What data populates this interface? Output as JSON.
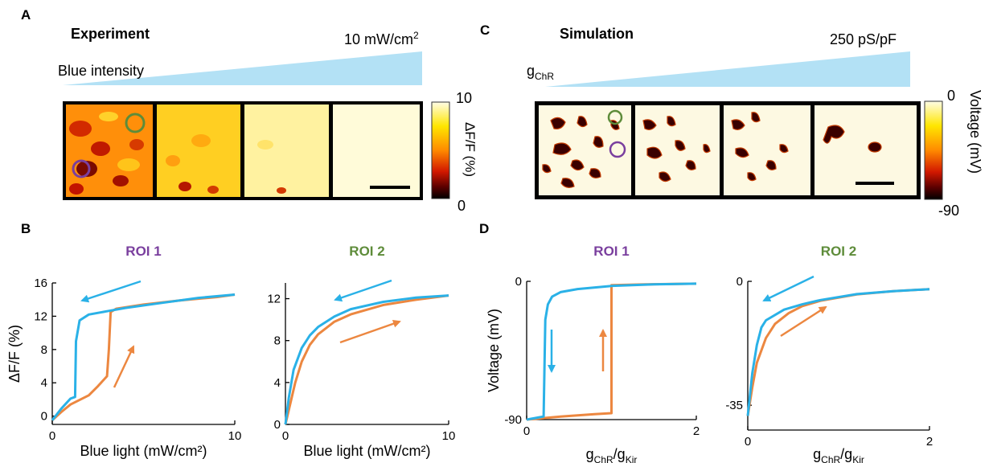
{
  "panels": {
    "A": {
      "letter": "A",
      "title": "Experiment",
      "intensity_label": "Blue intensity",
      "max_label": "10 mW/cm",
      "max_sup": "2",
      "colorbar": {
        "top": "10",
        "bottom": "0",
        "label": "ΔF/F (%)",
        "colors": [
          "#fffde6",
          "#ffe600",
          "#ff8a00",
          "#d21800",
          "#5a0000",
          "#000000"
        ]
      }
    },
    "C": {
      "letter": "C",
      "title": "Simulation",
      "g_label": "g",
      "g_sub": "ChR",
      "max_label": "250 pS/pF",
      "colorbar": {
        "top": "0",
        "bottom": "-90",
        "label": "Voltage (mV)"
      }
    },
    "B": {
      "letter": "B"
    },
    "D": {
      "letter": "D"
    }
  },
  "colors": {
    "ramp": "#b3e1f5",
    "blue": "#2ab1e7",
    "orange": "#ec8740",
    "roi1": "#7a3f9e",
    "roi2": "#5e8c3a"
  },
  "chart_data": [
    {
      "type": "line",
      "title": "ROI 1",
      "xlabel": "Blue light (mW/cm²)",
      "ylabel": "ΔF/F (%)",
      "xlim": [
        0,
        10
      ],
      "ylim": [
        -1,
        16
      ],
      "xticks": [
        "0",
        "10"
      ],
      "yticks": [
        "0",
        "4",
        "8",
        "12",
        "16"
      ],
      "series": [
        {
          "values": [
            [
              0,
              -0.5
            ],
            [
              0.5,
              0.5
            ],
            [
              1,
              1.4
            ],
            [
              2,
              2.5
            ],
            [
              2.5,
              3.6
            ],
            [
              3,
              4.8
            ],
            [
              3.1,
              8
            ],
            [
              3.2,
              12.5
            ],
            [
              3.5,
              12.9
            ],
            [
              5,
              13.4
            ],
            [
              7,
              13.9
            ],
            [
              9,
              14.3
            ],
            [
              10,
              14.6
            ]
          ]
        },
        {
          "values": [
            [
              10,
              14.6
            ],
            [
              8,
              14.2
            ],
            [
              6,
              13.6
            ],
            [
              4,
              13
            ],
            [
              3,
              12.6
            ],
            [
              2,
              12.2
            ],
            [
              1.5,
              11.5
            ],
            [
              1.3,
              9
            ],
            [
              1.25,
              2.3
            ],
            [
              1,
              2.1
            ],
            [
              0.5,
              0.9
            ],
            [
              0,
              -0.5
            ]
          ]
        }
      ]
    },
    {
      "type": "line",
      "title": "ROI 2",
      "xlabel": "Blue light (mW/cm²)",
      "ylabel": "",
      "xlim": [
        0,
        10
      ],
      "ylim": [
        0,
        13.5
      ],
      "xticks": [
        "0",
        "10"
      ],
      "yticks": [
        "0",
        "4",
        "8",
        "12"
      ],
      "series": [
        {
          "values": [
            [
              0,
              0
            ],
            [
              0.3,
              2
            ],
            [
              0.6,
              4
            ],
            [
              1,
              6
            ],
            [
              1.5,
              7.6
            ],
            [
              2,
              8.6
            ],
            [
              3,
              9.8
            ],
            [
              4,
              10.5
            ],
            [
              6,
              11.4
            ],
            [
              8,
              11.9
            ],
            [
              10,
              12.3
            ]
          ]
        },
        {
          "values": [
            [
              10,
              12.3
            ],
            [
              8,
              12.1
            ],
            [
              6,
              11.7
            ],
            [
              4,
              11
            ],
            [
              3,
              10.3
            ],
            [
              2,
              9.3
            ],
            [
              1.5,
              8.5
            ],
            [
              1,
              7.3
            ],
            [
              0.5,
              5.2
            ],
            [
              0.2,
              2.5
            ],
            [
              0,
              0
            ]
          ]
        }
      ]
    },
    {
      "type": "line",
      "title": "ROI 1",
      "xlabel": "g",
      "xlabel_sub1": "ChR",
      "xlabel_mid": "/g",
      "xlabel_sub2": "Kir",
      "ylabel": "Voltage (mV)",
      "xlim": [
        0,
        2
      ],
      "ylim": [
        -90,
        0
      ],
      "xticks": [
        "0",
        "2"
      ],
      "yticks": [
        "0",
        "-90"
      ],
      "series": [
        {
          "values": [
            [
              0,
              -90
            ],
            [
              0.4,
              -88
            ],
            [
              0.8,
              -86.5
            ],
            [
              1.0,
              -85.8
            ],
            [
              1.0,
              -2.5
            ],
            [
              1.4,
              -2
            ],
            [
              2,
              -1.5
            ]
          ]
        },
        {
          "values": [
            [
              2,
              -1.5
            ],
            [
              1.5,
              -2
            ],
            [
              1,
              -3
            ],
            [
              0.6,
              -5
            ],
            [
              0.4,
              -7
            ],
            [
              0.3,
              -10
            ],
            [
              0.25,
              -15
            ],
            [
              0.22,
              -25
            ],
            [
              0.2,
              -88
            ],
            [
              0.15,
              -88.5
            ],
            [
              0,
              -90
            ]
          ]
        }
      ]
    },
    {
      "type": "line",
      "title": "ROI 2",
      "xlabel": "g",
      "xlabel_sub1": "ChR",
      "xlabel_mid": "/g",
      "xlabel_sub2": "Kir",
      "ylabel": "",
      "xlim": [
        0,
        2
      ],
      "ylim": [
        -42,
        0
      ],
      "xticks": [
        "0",
        "2"
      ],
      "yticks": [
        "0",
        "-35"
      ],
      "series": [
        {
          "values": [
            [
              0,
              -38
            ],
            [
              0.05,
              -30
            ],
            [
              0.1,
              -23
            ],
            [
              0.2,
              -16
            ],
            [
              0.3,
              -12
            ],
            [
              0.45,
              -9
            ],
            [
              0.6,
              -7
            ],
            [
              0.8,
              -5.5
            ],
            [
              1.2,
              -3.7
            ],
            [
              1.6,
              -2.8
            ],
            [
              2,
              -2.2
            ]
          ]
        },
        {
          "values": [
            [
              2,
              -2.2
            ],
            [
              1.6,
              -2.8
            ],
            [
              1.2,
              -3.6
            ],
            [
              0.8,
              -5.3
            ],
            [
              0.6,
              -6.5
            ],
            [
              0.4,
              -8
            ],
            [
              0.2,
              -11
            ],
            [
              0.15,
              -13
            ],
            [
              0.1,
              -18
            ],
            [
              0.05,
              -26
            ],
            [
              0,
              -38
            ]
          ]
        }
      ]
    }
  ]
}
